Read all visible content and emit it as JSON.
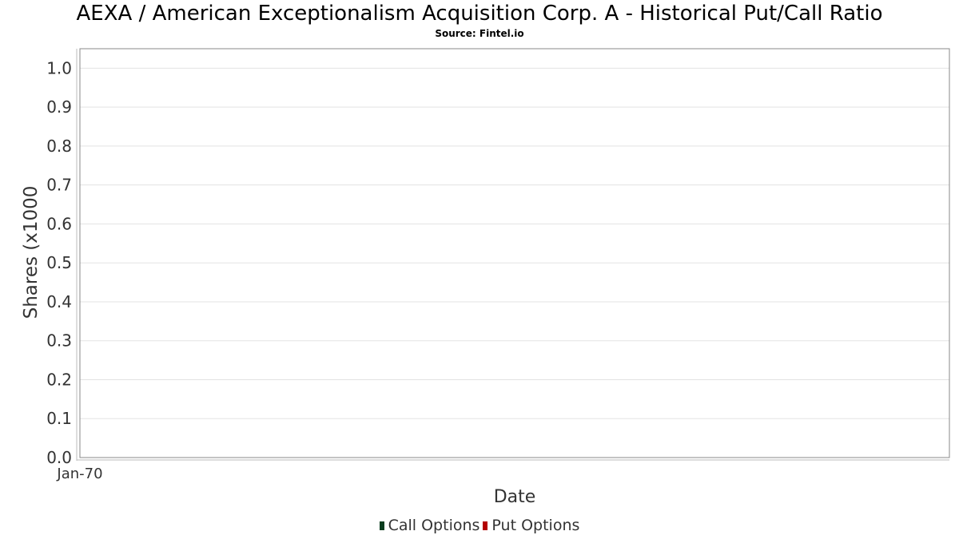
{
  "chart_data": {
    "type": "bar",
    "title": "AEXA / American Exceptionalism Acquisition Corp. A - Historical Put/Call Ratio",
    "subtitle": "Source: Fintel.io",
    "xlabel": "Date",
    "ylabel": "Shares (x1000",
    "x_tick_labels": [
      "Jan-70"
    ],
    "y_ticks": [
      "0.0",
      "0.1",
      "0.2",
      "0.3",
      "0.4",
      "0.5",
      "0.6",
      "0.7",
      "0.8",
      "0.9",
      "1.0"
    ],
    "ylim": [
      0,
      1.05
    ],
    "grid": true,
    "legend_position": "bottom",
    "series": [
      {
        "name": "Call Options",
        "color": "#0b3d1f",
        "values": []
      },
      {
        "name": "Put Options",
        "color": "#b30000",
        "values": []
      }
    ]
  }
}
